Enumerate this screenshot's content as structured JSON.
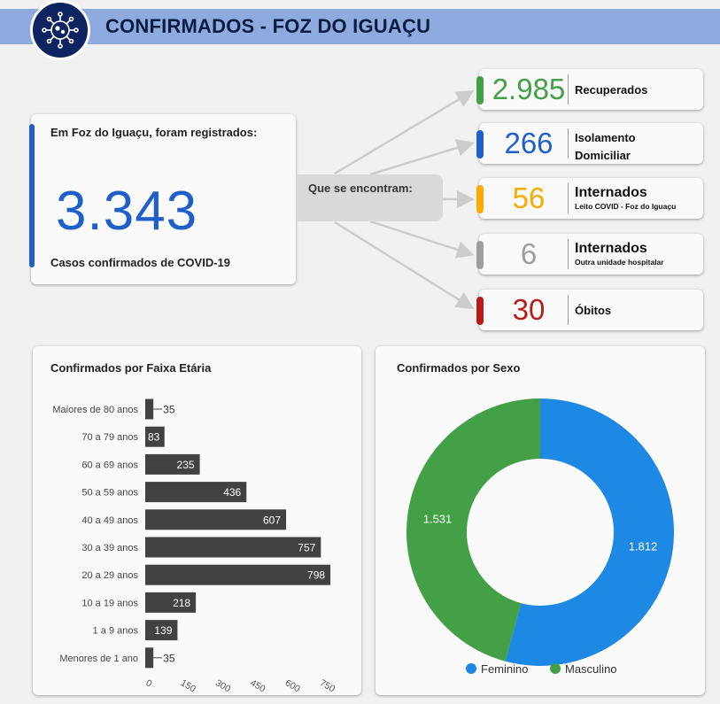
{
  "header": {
    "title": "CONFIRMADOS - FOZ DO IGUAÇU",
    "logo_icon": "virus-icon"
  },
  "main": {
    "intro": "Em Foz do Iguaçu, foram registrados:",
    "total": "3.343",
    "footer": "Casos confirmados de COVID-19",
    "color": "#1f5fc9"
  },
  "flow_label": "Que se encontram:",
  "stats": [
    {
      "value": "2.985",
      "label": "Recuperados",
      "sub": "",
      "color": "#43a047"
    },
    {
      "value": "266",
      "label": "Isolamento Domiciliar",
      "sub": "",
      "color": "#1f5fc9"
    },
    {
      "value": "56",
      "label": "Internados",
      "sub": "Leito COVID - Foz do Iguaçu",
      "color": "#f9ab00"
    },
    {
      "value": "6",
      "label": "Internados",
      "sub": "Outra unidade hospitalar",
      "color": "#9e9e9e"
    },
    {
      "value": "30",
      "label": "Óbitos",
      "sub": "",
      "color": "#b71c1c"
    }
  ],
  "age_chart": {
    "title": "Confirmados por Faixa Etária"
  },
  "sex_chart": {
    "title": "Confirmados por Sexo"
  },
  "chart_data": [
    {
      "type": "bar",
      "orientation": "horizontal",
      "title": "Confirmados por Faixa Etária",
      "categories": [
        "Maiores de 80 anos",
        "70 a 79 anos",
        "60 a 69 anos",
        "50 a 59 anos",
        "40 a 49 anos",
        "30 a 39 anos",
        "20 a 29 anos",
        "10 a 19 anos",
        "1 a 9 anos",
        "Menores de 1 ano"
      ],
      "values": [
        35,
        83,
        235,
        436,
        607,
        757,
        798,
        218,
        139,
        35
      ],
      "xticks": [
        "0",
        "150",
        "300",
        "450",
        "600",
        "750"
      ],
      "xlim": [
        0,
        830
      ],
      "bar_color": "#424242",
      "grid": false
    },
    {
      "type": "pie",
      "variant": "donut",
      "title": "Confirmados por Sexo",
      "labels": [
        "Feminino",
        "Masculino"
      ],
      "values": [
        1812,
        1531
      ],
      "value_labels": [
        "1.812",
        "1.531"
      ],
      "colors": [
        "#1e88e5",
        "#43a047"
      ],
      "legend": "bottom"
    }
  ]
}
